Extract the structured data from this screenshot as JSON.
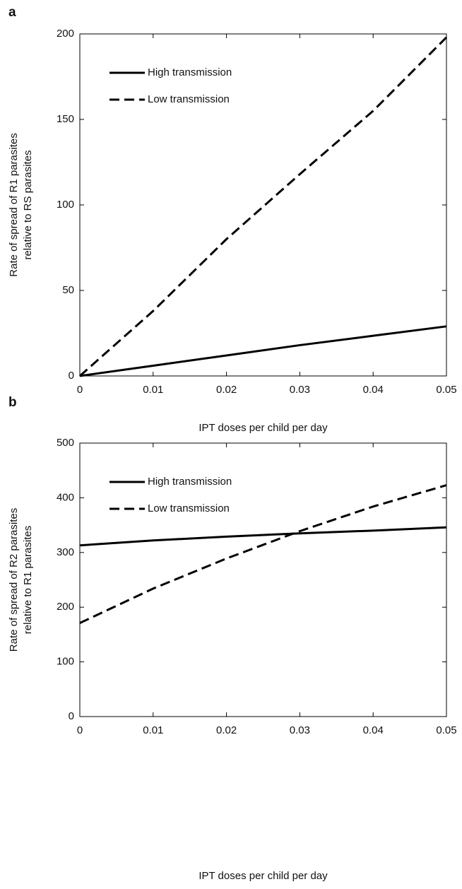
{
  "chart_data": [
    {
      "type": "line",
      "panel_label": "a",
      "x_label": "IPT doses per child per day",
      "y_label": [
        "Rate of spread of R1 parasites",
        "relative to RS parasites"
      ],
      "x": [
        0,
        0.01,
        0.02,
        0.03,
        0.04,
        0.05
      ],
      "series": [
        {
          "name": "High transmission",
          "color": "#000000",
          "style": "solid",
          "values": [
            0,
            6,
            12,
            18,
            23.5,
            29
          ]
        },
        {
          "name": "Low transmission",
          "color": "#000000",
          "style": "dashed",
          "values": [
            0,
            38,
            80,
            118,
            155,
            198
          ]
        }
      ],
      "xlim": [
        0,
        0.05
      ],
      "xticks": [
        0,
        0.01,
        0.02,
        0.03,
        0.04,
        0.05
      ],
      "ylim": [
        0,
        200
      ],
      "yticks": [
        0,
        50,
        100,
        150,
        200
      ],
      "grid": false,
      "legend": "upper left"
    },
    {
      "type": "line",
      "panel_label": "b",
      "x_label": "IPT doses per child per day",
      "y_label": [
        "Rate of spread of R2 parasites",
        "relative to R1 parasites"
      ],
      "x": [
        0,
        0.01,
        0.02,
        0.03,
        0.04,
        0.05
      ],
      "series": [
        {
          "name": "High transmission",
          "color": "#000000",
          "style": "solid",
          "values": [
            313,
            322,
            329,
            335,
            340,
            346
          ]
        },
        {
          "name": "Low transmission",
          "color": "#000000",
          "style": "dashed",
          "values": [
            171,
            234,
            289,
            339,
            384,
            423
          ]
        }
      ],
      "xlim": [
        0,
        0.05
      ],
      "xticks": [
        0,
        0.01,
        0.02,
        0.03,
        0.04,
        0.05
      ],
      "ylim": [
        0,
        500
      ],
      "yticks": [
        0,
        100,
        200,
        300,
        400,
        500
      ],
      "grid": false,
      "legend": "upper left"
    }
  ]
}
